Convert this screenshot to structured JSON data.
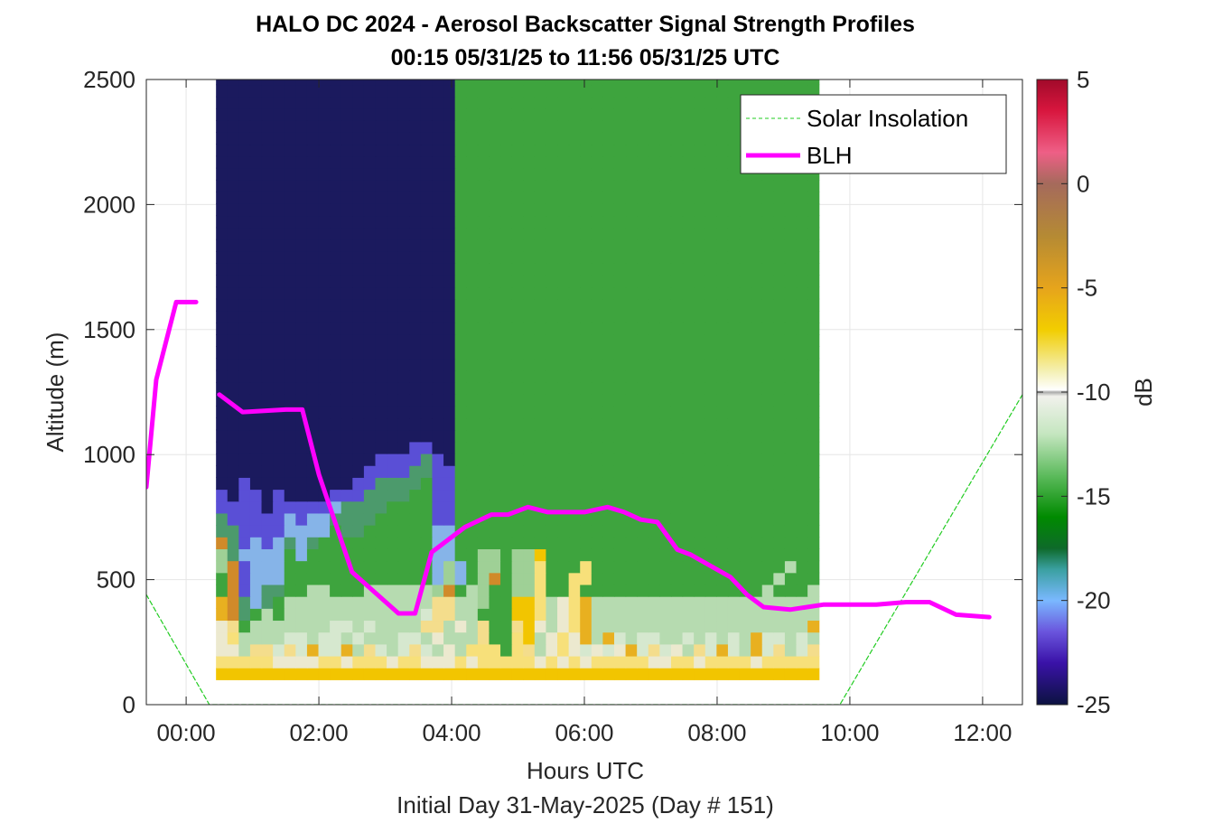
{
  "chart_data": {
    "type": "heatmap",
    "title_line1": "HALO DC 2024 - Aerosol Backscatter Signal Strength Profiles",
    "title_line2": "00:15 05/31/25 to 11:56 05/31/25  UTC",
    "xlabel": "Hours UTC",
    "xlabel2": "Initial Day 31-May-2025 (Day # 151)",
    "ylabel": "Altitude (m)",
    "colorbar_label": "dB",
    "xlim": [
      -0.6,
      12.6
    ],
    "ylim": [
      0,
      2500
    ],
    "clim": [
      -25,
      5
    ],
    "x_ticks": [
      0,
      2,
      4,
      6,
      8,
      10,
      12
    ],
    "x_tick_labels": [
      "00:00",
      "02:00",
      "04:00",
      "06:00",
      "08:00",
      "10:00",
      "12:00"
    ],
    "y_ticks": [
      0,
      500,
      1000,
      1500,
      2000,
      2500
    ],
    "y_tick_labels": [
      "0",
      "500",
      "1000",
      "1500",
      "2000",
      "2500"
    ],
    "c_ticks": [
      5,
      0,
      -5,
      -10,
      -15,
      -20,
      -25
    ],
    "c_tick_labels": [
      "5",
      "0",
      "-5",
      "-10",
      "-15",
      "-20",
      "-25"
    ],
    "grid": true,
    "legend_position": "top-right",
    "series": [
      {
        "name": "Solar Insolation",
        "style": "dashed",
        "color": "#22cc22",
        "x": [
          -0.6,
          0.35,
          9.85,
          12.6
        ],
        "y": [
          440,
          0,
          0,
          1240
        ]
      },
      {
        "name": "BLH",
        "style": "solid",
        "color": "#ff00ff",
        "x": [
          -0.6,
          -0.45,
          -0.15,
          0.15,
          0.3,
          0.5,
          0.85,
          1.5,
          1.75,
          2.0,
          2.5,
          3.2,
          3.45,
          3.7,
          4.2,
          4.6,
          4.85,
          5.15,
          5.45,
          6.0,
          6.35,
          6.6,
          6.85,
          7.1,
          7.4,
          7.6,
          8.2,
          8.45,
          8.7,
          9.1,
          9.6,
          10.4,
          10.85,
          11.2,
          11.6,
          12.1
        ],
        "y": [
          870,
          1300,
          1610,
          1610,
          null,
          1240,
          1170,
          1180,
          1180,
          920,
          530,
          365,
          365,
          610,
          710,
          760,
          760,
          790,
          770,
          770,
          790,
          770,
          740,
          730,
          620,
          600,
          510,
          440,
          390,
          380,
          400,
          400,
          410,
          410,
          360,
          350
        ]
      }
    ],
    "heatmap": {
      "x_start": 0.45,
      "x_step": 0.1714,
      "y_start": 100,
      "y_step": 47.6,
      "rows_bottom_to_top": [
        "aaaaaaaaaaaaaaaaaaaaaaaaaaaaaaaaaaaaaaaaaaaaaaaaaaaaa",
        "bbbbbccccbbcbbbcbbcccbcbbbbbcbcbcbbbbbccbbcbbbbcbbbbb",
        "ccgddfdfeffegdfgfdfgcgbbbhbdgcbcfcfcefdfcgdfefgefdgfd",
        "cbggggffgffgfgggffgcgggdhhbagcbcegefgffggfgfgfgeffgfg",
        "cdhgggggggffgfggggddgcgdhhdacgcbeggggggggggggggggggge",
        "ejkhghggggggggggggfddgghhhaabgcbegggggggggggggggggggg",
        "ejklkhgggggggggggggddggihhaabgcbegggggggggggggggggggg",
        "hjmlkkhhgghhhggggggijhgihhiibhhbhhhhhhhhhhhhhhhhghhhg",
        "hjmlllhhhhhhhhhhhhhlilhijhiibhhbbhhhhhhhhhhhhhhhhghhh",
        "ijmlllhhhhhhhhhhhhhlilhiihiibhhhbhhhhhhhhhhhhhhhhhghh",
        "ikllllhlhhhhhhhhhhhllhhiihiiahhhhhhhhhhhhhhhhhhhhhhhh",
        "jkmlmlklkhhhhhhhhhhllhhhhhhhhhhhhhhhhhhhhhhhhhhhhhhhh",
        "kkmmmmllllhkkhhhhhhllhhhhhhhhhhhhhhhhhhhhhhhhhhhhhhhh",
        "kmmmmmlmllkkkkhhhhhmmhhhhhhhhhhhhhhhhhhhhhhhhhhhhhhhh",
        "mmmmnmmmmmlkkkkhhhhmmhhhhhhhhhhhhhhhhhhhhhhhhhhhhhhhh",
        "mnmmnmnnnnmmmkkkkhhmmhhhhhhhhhhhhhhhhhhhhhhhhhhhhhhhh",
        "nnmnnnnnnnnnmmkkkkhmmhhhhhhhhhhhhhhhhhhhhhhhhhhhhhhhh",
        "nnnnnnnnnnnnnmmmmkkmmhhhhhhhhhhhhhhhhhhhhhhhhhhhhhhhh",
        "nnnnnnnnnnnnnnmmmmkmnhhhhhhhhhhhhhhhhhhhhhhhhhhhhhhhh",
        "nnnnnnnnnnnnnnnnnmmnnhhhhhhhhhhhhhhhhhhhhhhhhhhhhhhhh",
        "nnnnnnnnnnnnnnnnnnnnnhhhhhhhhhhhhhhhhhhhhhhhhhhhhhhhh",
        "nnnnnnnnnnnnnnnnnnnnnhhhhhhhhhhhhhhhhhhhhhhhhhhhhhhhh",
        "nnnnnnnnnnnnnnnnnnnnnhhhhhhhhhhhhhhhhhhhhhhhhhhhhhhhh",
        "nnnnnnnnnnnnnnnnnnnnnhhhhhhhhhhhhhhhhhhhhhhhhhhhhhhhh",
        "nnnnnnnnnnnnnnnnnnnnnhhhhhhhhhhhhhhhhhhhhhhhhhhhhhhhh",
        "nnnnnnnnnnnnnnnnnnnnnhhhhhhhhhhhhhhhhhhhhhhhhhhhhhhhh",
        "nnnnnnnnnnnnnnnnnnnnnhhhhhhhhhhhhhhhhhhhhhhhhhhhhhhhh",
        "nnnnnnnnnnnnnnnnnnnnnhhhhhhhhhhhhhhhhhhhhhhhhhhhhhhhh",
        "nnnnnnnnnnnnnnnnnnnnnhhhhhhhhhhhhhhhhhhhhhhhhhhhhhhhh",
        "nnnnnnnnnnnnnnnnnnnnnhhhhhhhhhhhhhhhhhhhhhhhhhhhhhhhh",
        "nnnnnnnnnnnnnnnnnnnnnhhhhhhhhhhhhhhhhhhhhhhhhhhhhhhhh",
        "nnnnnnnnnnnnnnnnnnnnnhhhhhhhhhhhhhhhhhhhhhhhhhhhhhhhh",
        "nnnnnnnnnnnnnnnnnnnnnhhhhhhhhhhhhhhhhhhhhhhhhhhhhhhhh",
        "nnnnnnnnnnnnnnnnnnnnnhhhhhhhhhhhhhhhhhhhhhhhhhhhhhhhh",
        "nnnnnnnnnnnnnnnnnnnnnhhhhhhhhhhhhhhhhhhhhhhhhhhhhhhhh",
        "nnnnnnnnnnnnnnnnnnnnnhhhhhhhhhhhhhhhhhhhhhhhhhhhhhhhh",
        "nnnnnnnnnnnnnnnnnnnnnhhhhhhhhhhhhhhhhhhhhhhhhhhhhhhhh",
        "nnnnnnnnnnnnnnnnnnnnnhhhhhhhhhhhhhhhhhhhhhhhhhhhhhhhh",
        "nnnnnnnnnnnnnnnnnnnnnhhhhhhhhhhhhhhhhhhhhhhhhhhhhhhhh",
        "nnnnnnnnnnnnnnnnnnnnnhhhhhhhhhhhhhhhhhhhhhhhhhhhhhhhh",
        "nnnnnnnnnnnnnnnnnnnnnhhhhhhhhhhhhhhhhhhhhhhhhhhhhhhhh",
        "nnnnnnnnnnnnnnnnnnnnnhhhhhhhhhhhhhhhhhhhhhhhhhhhhhhhh",
        "nnnnnnnnnnnnnnnnnnnnnhhhhhhhhhhhhhhhhhhhhhhhhhhhhhhhh",
        "nnnnnnnnnnnnnnnnnnnnnhhhhhhhhhhhhhhhhhhhhhhhhhhhhhhhh",
        "nnnnnnnnnnnnnnnnnnnnnhhhhhhhhhhhhhhhhhhhhhhhhhhhhhhhh",
        "nnnnnnnnnnnnnnnnnnnnnhhhhhhhhhhhhhhhhhhhhhhhhhhhhhhhh",
        "nnnnnnnnnnnnnnnnnnnnnhhhhhhhhhhhhhhhhhhhhhhhhhhhhhhhh",
        "nnnnnnnnnnnnnnnnnnnnnhhhhhhhhhhhhhhhhhhhhhhhhhhhhhhhh",
        "nnnnnnnnnnnnnnnnnnnnnhhhhhhhhhhhhhhhhhhhhhhhhhhhhhhhh",
        "nnnnnnnnnnnnnnnnnnnnnhhhhhhhhhhhhhhhhhhhhhhhhhhhhhhhh",
        "nnnnnnnnnnnnnnnnnnnnnhhhhhhhhhhhhhhhhhhhhhhhhhhhhhhhh"
      ],
      "palette": {
        "a": "#f2c500",
        "b": "#f7e07a",
        "c": "#ece9cf",
        "d": "#f4dd8c",
        "e": "#e8b020",
        "f": "#d6e8cf",
        "g": "#b6dbb0",
        "h": "#3ea43e",
        "i": "#9fd096",
        "j": "#d08a2a",
        "k": "#4c9a6c",
        "l": "#86b4e8",
        "m": "#5a4fd6",
        "n": "#1b1a5e"
      }
    }
  },
  "colorbar_stops": [
    {
      "v": 5,
      "c": "#a10a2a"
    },
    {
      "v": 3.5,
      "c": "#d8163e"
    },
    {
      "v": 1.5,
      "c": "#ee5f86"
    },
    {
      "v": 0,
      "c": "#a56a5c"
    },
    {
      "v": -2.5,
      "c": "#b58a34"
    },
    {
      "v": -5,
      "c": "#e6a41c"
    },
    {
      "v": -7,
      "c": "#f2cd00"
    },
    {
      "v": -9,
      "c": "#f4f0b4"
    },
    {
      "v": -9.9,
      "c": "#ffffff"
    },
    {
      "v": -10,
      "c": "#a9a9a9"
    },
    {
      "v": -10.2,
      "c": "#f1f1ec"
    },
    {
      "v": -12,
      "c": "#c5e6c0"
    },
    {
      "v": -14,
      "c": "#5dbb5d"
    },
    {
      "v": -16,
      "c": "#008a00"
    },
    {
      "v": -17.5,
      "c": "#0e6a2a"
    },
    {
      "v": -18.5,
      "c": "#3aa0a0"
    },
    {
      "v": -20,
      "c": "#7ab8ff"
    },
    {
      "v": -21.5,
      "c": "#6a55dd"
    },
    {
      "v": -23,
      "c": "#3a12a8"
    },
    {
      "v": -25,
      "c": "#0c1240"
    }
  ]
}
